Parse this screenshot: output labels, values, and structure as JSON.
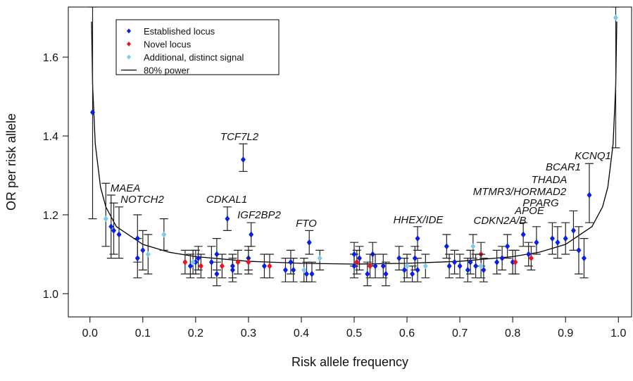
{
  "chart_data": {
    "type": "scatter",
    "xlabel": "Risk allele frequency",
    "ylabel": "OR per risk allele",
    "xlim": [
      -0.041,
      1.025
    ],
    "ylim": [
      0.941,
      1.727
    ],
    "xticks": [
      {
        "value": 0,
        "label": "0.0"
      },
      0.1,
      0.2,
      0.3,
      0.4,
      0.5,
      0.6,
      0.7,
      0.8,
      0.9,
      {
        "value": 1,
        "label": "1.0"
      }
    ],
    "yticks": [
      {
        "value": 1,
        "label": "1.0"
      },
      1.2,
      1.4,
      1.6
    ],
    "series": [
      {
        "name": "Established locus",
        "color": "#0a1ee6",
        "x": [
          0.005,
          0.04,
          0.045,
          0.055,
          0.09,
          0.09,
          0.1,
          0.19,
          0.2,
          0.205,
          0.23,
          0.24,
          0.24,
          0.26,
          0.27,
          0.27,
          0.29,
          0.305,
          0.3,
          0.33,
          0.37,
          0.38,
          0.385,
          0.41,
          0.415,
          0.42,
          0.5,
          0.5,
          0.51,
          0.525,
          0.535,
          0.54,
          0.555,
          0.56,
          0.585,
          0.595,
          0.61,
          0.615,
          0.62,
          0.62,
          0.675,
          0.68,
          0.69,
          0.7,
          0.715,
          0.72,
          0.73,
          0.745,
          0.77,
          0.78,
          0.79,
          0.8,
          0.82,
          0.83,
          0.845,
          0.875,
          0.885,
          0.9,
          0.915,
          0.925,
          0.935,
          0.945
        ],
        "values": [
          1.46,
          1.17,
          1.16,
          1.15,
          1.14,
          1.09,
          1.11,
          1.07,
          1.08,
          1.09,
          1.08,
          1.1,
          1.05,
          1.19,
          1.07,
          1.06,
          1.34,
          1.15,
          1.09,
          1.07,
          1.06,
          1.08,
          1.06,
          1.05,
          1.13,
          1.05,
          1.1,
          1.07,
          1.09,
          1.05,
          1.1,
          1.07,
          1.07,
          1.05,
          1.09,
          1.06,
          1.05,
          1.09,
          1.06,
          1.14,
          1.12,
          1.07,
          1.08,
          1.07,
          1.06,
          1.08,
          1.07,
          1.06,
          1.08,
          1.09,
          1.12,
          1.08,
          1.15,
          1.1,
          1.13,
          1.14,
          1.13,
          1.14,
          1.16,
          1.11,
          1.09,
          1.25
        ],
        "lower": [
          1.19,
          1.09,
          1.1,
          1.09,
          1.08,
          1.04,
          1.06,
          1.04,
          1.05,
          1.06,
          1.04,
          1.06,
          1.02,
          1.16,
          1.04,
          1.03,
          1.31,
          1.12,
          1.06,
          1.04,
          1.03,
          1.05,
          1.03,
          1.03,
          1.1,
          1.03,
          1.07,
          1.04,
          1.06,
          1.02,
          1.07,
          1.04,
          1.04,
          1.02,
          1.06,
          1.03,
          1.03,
          1.06,
          1.03,
          1.11,
          1.09,
          1.04,
          1.05,
          1.04,
          1.03,
          1.05,
          1.04,
          1.03,
          1.05,
          1.06,
          1.09,
          1.05,
          1.12,
          1.07,
          1.1,
          1.1,
          1.09,
          1.1,
          1.11,
          1.05,
          1.04,
          1.18
        ],
        "upper": [
          1.727,
          1.25,
          1.23,
          1.22,
          1.2,
          1.14,
          1.16,
          1.1,
          1.11,
          1.12,
          1.12,
          1.14,
          1.08,
          1.22,
          1.1,
          1.09,
          1.38,
          1.18,
          1.12,
          1.1,
          1.09,
          1.11,
          1.09,
          1.08,
          1.16,
          1.08,
          1.13,
          1.1,
          1.12,
          1.08,
          1.13,
          1.1,
          1.1,
          1.08,
          1.12,
          1.09,
          1.07,
          1.12,
          1.09,
          1.17,
          1.15,
          1.1,
          1.11,
          1.1,
          1.09,
          1.11,
          1.1,
          1.09,
          1.11,
          1.12,
          1.15,
          1.11,
          1.18,
          1.13,
          1.17,
          1.18,
          1.17,
          1.18,
          1.21,
          1.17,
          1.14,
          1.33
        ]
      },
      {
        "name": "Novel locus",
        "color": "#e8141e",
        "x": [
          0.18,
          0.21,
          0.25,
          0.28,
          0.3,
          0.34,
          0.505,
          0.53,
          0.74,
          0.805,
          0.835
        ],
        "values": [
          1.08,
          1.07,
          1.07,
          1.08,
          1.08,
          1.07,
          1.08,
          1.07,
          1.1,
          1.08,
          1.09
        ],
        "lower": [
          1.05,
          1.04,
          1.04,
          1.05,
          1.05,
          1.04,
          1.05,
          1.04,
          1.07,
          1.05,
          1.06
        ],
        "upper": [
          1.11,
          1.1,
          1.1,
          1.11,
          1.11,
          1.1,
          1.11,
          1.1,
          1.13,
          1.11,
          1.12
        ]
      },
      {
        "name": "Additional, distinct signal",
        "color": "#7ec8ec",
        "x": [
          0.03,
          0.11,
          0.14,
          0.195,
          0.405,
          0.435,
          0.6,
          0.635,
          0.725,
          0.74,
          0.995
        ],
        "values": [
          1.19,
          1.1,
          1.15,
          1.08,
          1.06,
          1.09,
          1.07,
          1.07,
          1.12,
          1.07,
          1.7
        ],
        "lower": [
          1.12,
          1.05,
          1.11,
          1.05,
          1.03,
          1.06,
          1.04,
          1.04,
          1.09,
          1.04,
          1.37
        ],
        "upper": [
          1.28,
          1.15,
          1.19,
          1.11,
          1.09,
          1.11,
          1.1,
          1.1,
          1.15,
          1.1,
          1.727
        ]
      }
    ],
    "curve": {
      "name": "80% power",
      "color": "#000000",
      "x": [
        0.003,
        0.005,
        0.01,
        0.02,
        0.03,
        0.05,
        0.1,
        0.15,
        0.2,
        0.3,
        0.4,
        0.5,
        0.6,
        0.7,
        0.8,
        0.85,
        0.9,
        0.95,
        0.97,
        0.98,
        0.99,
        0.995,
        0.997
      ],
      "values": [
        1.69,
        1.53,
        1.38,
        1.27,
        1.22,
        1.17,
        1.125,
        1.105,
        1.094,
        1.082,
        1.077,
        1.075,
        1.077,
        1.082,
        1.094,
        1.105,
        1.125,
        1.17,
        1.22,
        1.27,
        1.38,
        1.53,
        1.69
      ]
    },
    "annotations": [
      "TCF7L2",
      "MAEA",
      "NOTCH2",
      "CDKAL1",
      "IGF2BP2",
      "FTO",
      "HHEX/IDE",
      "CDKN2A/B",
      "APOE",
      "PPARG",
      "MTMR3/HORMAD2",
      "THADA",
      "BCAR1",
      "KCNQ1"
    ]
  }
}
